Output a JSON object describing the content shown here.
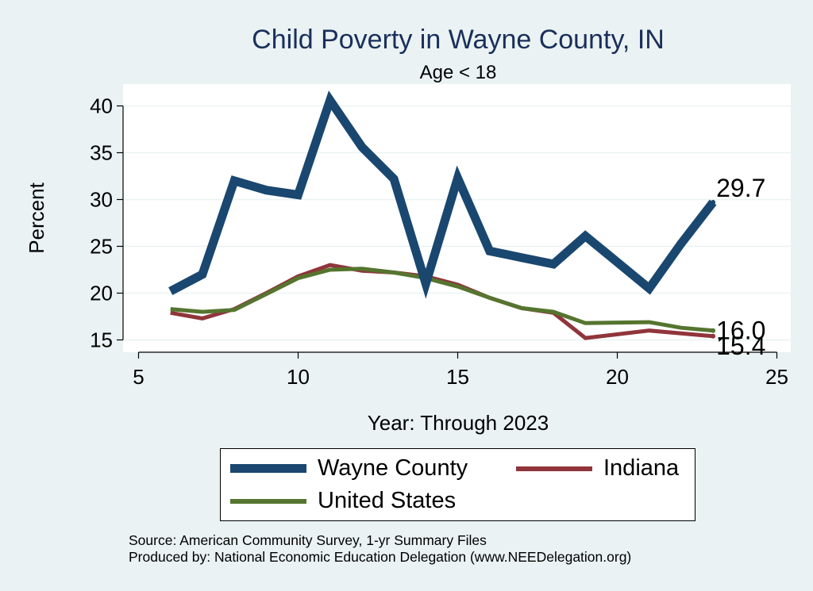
{
  "chart_data": {
    "type": "line",
    "title": "Child Poverty in Wayne County, IN",
    "subtitle": "Age < 18",
    "xlabel": "Year: Through 2023",
    "ylabel": "Percent",
    "xlim": [
      5,
      25
    ],
    "ylim": [
      14,
      42
    ],
    "xticks": [
      5,
      10,
      15,
      20,
      25
    ],
    "yticks": [
      15,
      20,
      25,
      30,
      35,
      40
    ],
    "grid": true,
    "series": [
      {
        "name": "Wayne County",
        "color": "#1a476f",
        "x": [
          6,
          7,
          8,
          9,
          10,
          11,
          12,
          13,
          14,
          15,
          16,
          17,
          18,
          19,
          21,
          22,
          23
        ],
        "y": [
          20.2,
          22.0,
          32.0,
          31.0,
          30.5,
          40.6,
          35.6,
          32.2,
          21.0,
          32.3,
          24.5,
          23.8,
          23.1,
          26.1,
          20.5,
          25.3,
          29.7
        ],
        "end_label": "29.7"
      },
      {
        "name": "Indiana",
        "color": "#90353b",
        "x": [
          6,
          7,
          8,
          9,
          10,
          11,
          12,
          13,
          14,
          15,
          16,
          17,
          18,
          19,
          21,
          22,
          23
        ],
        "y": [
          17.9,
          17.3,
          18.3,
          20.0,
          21.8,
          23.0,
          22.4,
          22.2,
          21.8,
          20.9,
          19.5,
          18.4,
          17.9,
          15.2,
          16.0,
          15.7,
          15.4
        ],
        "end_label": "15.4"
      },
      {
        "name": "United States",
        "color": "#55752f",
        "x": [
          6,
          7,
          8,
          9,
          10,
          11,
          12,
          13,
          14,
          15,
          16,
          17,
          18,
          19,
          21,
          22,
          23
        ],
        "y": [
          18.3,
          18.0,
          18.2,
          19.9,
          21.6,
          22.5,
          22.6,
          22.2,
          21.6,
          20.7,
          19.5,
          18.4,
          18.0,
          16.8,
          16.9,
          16.3,
          16.0
        ],
        "end_label": "16.0"
      }
    ]
  },
  "legend": {
    "items": [
      {
        "label": "Wayne County",
        "color": "#1a476f"
      },
      {
        "label": "Indiana",
        "color": "#90353b"
      },
      {
        "label": "United States",
        "color": "#55752f"
      }
    ]
  },
  "notes": {
    "source": "Source: American Community Survey, 1-yr Summary Files",
    "produced": "Produced by: National Economic Education Delegation (www.NEEDelegation.org)"
  }
}
